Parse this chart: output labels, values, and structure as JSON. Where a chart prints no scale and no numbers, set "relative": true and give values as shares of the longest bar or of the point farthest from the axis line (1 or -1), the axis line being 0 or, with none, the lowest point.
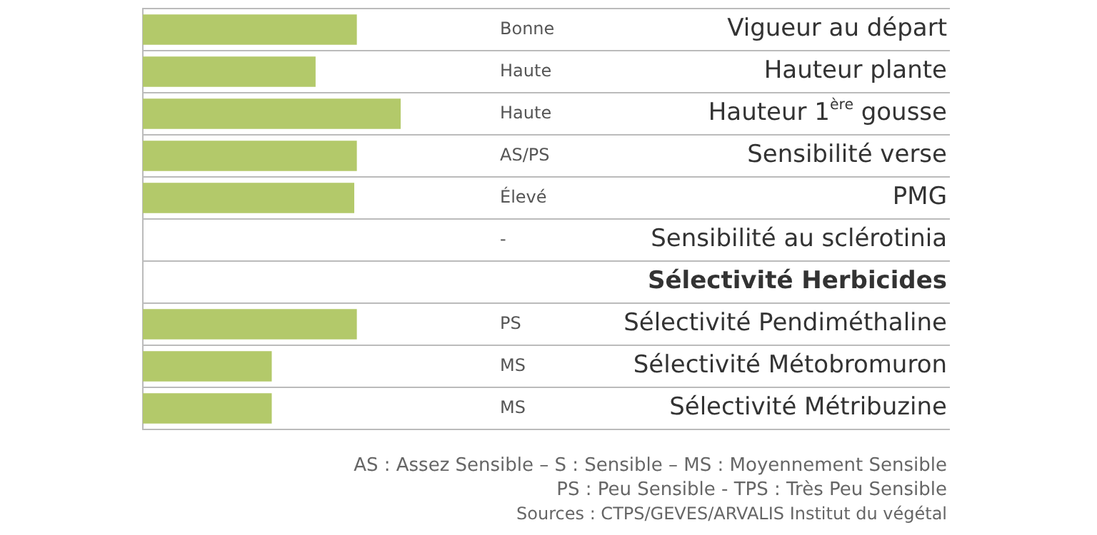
{
  "chart_data": {
    "type": "bar",
    "orientation": "horizontal",
    "relative": true,
    "categories": [
      "Vigueur au départ",
      "Hauteur plante",
      "Hauteur 1$^{ère}$ gousse",
      "Sensibilité verse",
      "PMG",
      "Sensibilité au sclérotinia",
      "Sélectivité Herbicides",
      "Sélectivité Pendiméthaline",
      "Sélectivité Métobromuron",
      "Sélectivité Métribuzine"
    ],
    "values": [
      0.83,
      0.67,
      1,
      0.83,
      0.82,
      0,
      null,
      0.83,
      0.5,
      0.5
    ],
    "color": "#b3c96a",
    "grid": "y",
    "legend": false,
    "annotations": [
      "Bonne",
      "Haute",
      "Haute",
      "AS/PS",
      "Élevé",
      "-",
      "PS",
      "MS",
      "MS",
      "AS : Assez Sensible –  S : Sensible – MS : Moyennement Sensible",
      "PS : Peu Sensible - TPS : Très Peu Sensible",
      "Sources : CTPS/GEVES/ARVALIS Institut du végétal"
    ]
  }
}
